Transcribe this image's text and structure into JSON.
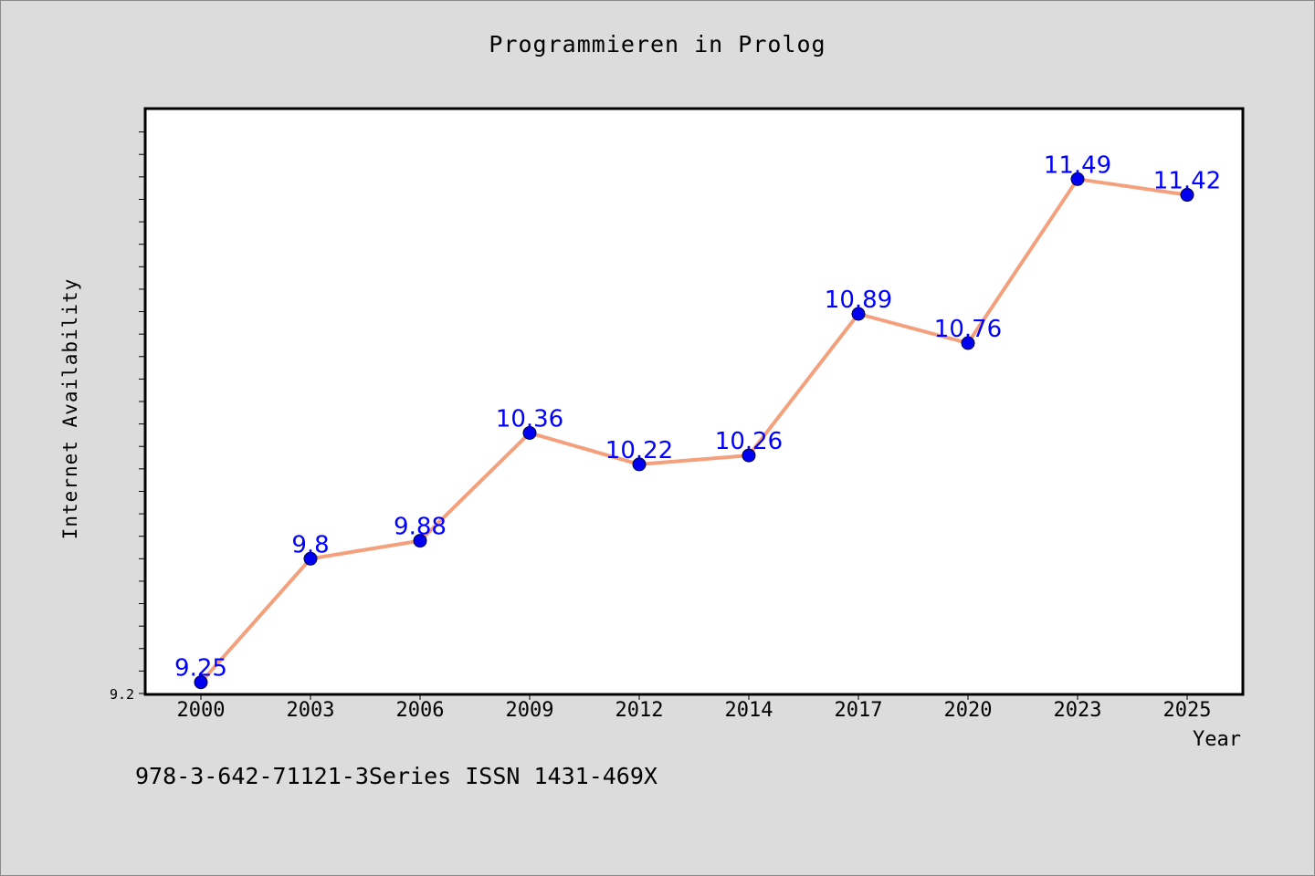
{
  "chart_data": {
    "type": "line",
    "title": "Programmieren in Prolog",
    "xlabel": "Year",
    "ylabel": "Internet Availability",
    "categories": [
      "2000",
      "2003",
      "2006",
      "2009",
      "2012",
      "2014",
      "2017",
      "2020",
      "2023",
      "2025"
    ],
    "series": [
      {
        "values": [
          9.25,
          9.8,
          9.88,
          10.36,
          10.22,
          10.26,
          10.89,
          10.76,
          11.49,
          11.42
        ],
        "labels": [
          "9.25",
          "9.8",
          "9.88",
          "10.36",
          "10.22",
          "10.26",
          "10.89",
          "10.76",
          "11.49",
          "11.42"
        ],
        "line_color": "#f4a07c",
        "marker_color": "#0000ee",
        "label_color": "#0000ff"
      }
    ],
    "ylim": [
      9.2,
      11.8
    ],
    "ytick_label": "9.2",
    "grid": false,
    "legend": "none"
  },
  "footer": {
    "note": "978-3-642-71121-3Series ISSN 1431-469X"
  },
  "colors": {
    "background": "#dcdcdc",
    "plot_background": "#ffffff"
  }
}
